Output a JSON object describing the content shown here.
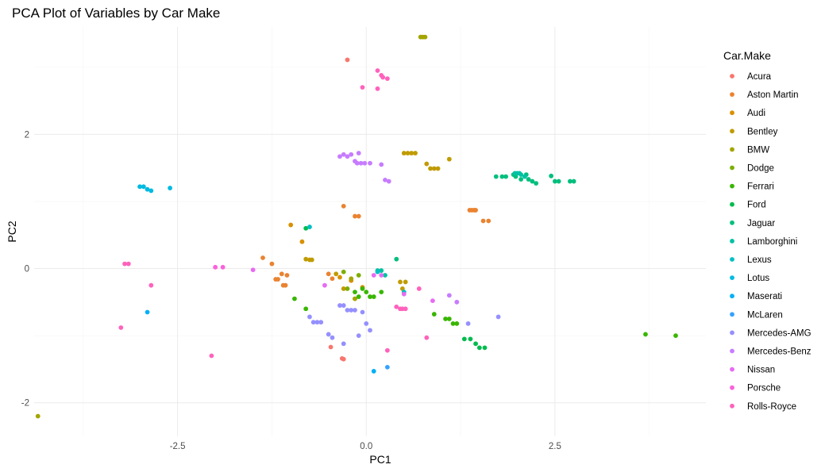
{
  "chart_data": {
    "type": "scatter",
    "title": "PCA Plot of Variables by Car Make",
    "xlabel": "PC1",
    "ylabel": "PC2",
    "xlim": [
      -4.4,
      4.5
    ],
    "ylim": [
      -2.5,
      3.6
    ],
    "x_ticks": [
      -2.5,
      0.0,
      2.5
    ],
    "x_tick_labels": [
      "-2.5",
      "0.0",
      "2.5"
    ],
    "y_ticks": [
      -2,
      0,
      2
    ],
    "y_tick_labels": [
      "-2",
      "0",
      "2"
    ],
    "grid": true,
    "legend": {
      "title": "Car.Make",
      "placement": "right"
    },
    "series": [
      {
        "name": "Acura",
        "color": "#F8766D",
        "points": [
          [
            -0.25,
            3.11
          ],
          [
            -0.47,
            -1.17
          ],
          [
            -0.32,
            -1.34
          ],
          [
            -0.3,
            -1.35
          ]
        ]
      },
      {
        "name": "Aston Martin",
        "color": "#EA8331",
        "points": [
          [
            1.37,
            0.87
          ],
          [
            1.4,
            0.87
          ],
          [
            1.43,
            0.87
          ],
          [
            1.45,
            0.87
          ],
          [
            1.55,
            0.71
          ],
          [
            1.62,
            0.71
          ],
          [
            -0.3,
            0.93
          ],
          [
            -0.15,
            0.78
          ],
          [
            -0.1,
            0.78
          ],
          [
            -1.37,
            0.16
          ],
          [
            -1.25,
            0.07
          ],
          [
            -1.2,
            -0.16
          ],
          [
            -1.17,
            -0.16
          ],
          [
            -1.12,
            -0.08
          ],
          [
            -1.1,
            -0.25
          ],
          [
            -1.07,
            -0.25
          ],
          [
            -1.05,
            -0.1
          ],
          [
            -0.5,
            -0.08
          ],
          [
            -0.45,
            -0.15
          ]
        ]
      },
      {
        "name": "Audi",
        "color": "#D89000",
        "points": [
          [
            -1.0,
            0.65
          ],
          [
            -0.85,
            0.4
          ],
          [
            -0.35,
            -0.13
          ],
          [
            -0.2,
            -0.18
          ],
          [
            -0.15,
            -0.45
          ],
          [
            -0.05,
            -0.28
          ]
        ]
      },
      {
        "name": "Bentley",
        "color": "#C09B00",
        "points": [
          [
            0.5,
            1.72
          ],
          [
            0.55,
            1.72
          ],
          [
            0.6,
            1.72
          ],
          [
            0.65,
            1.72
          ],
          [
            0.8,
            1.56
          ],
          [
            0.85,
            1.49
          ],
          [
            0.9,
            1.49
          ],
          [
            0.95,
            1.49
          ],
          [
            1.1,
            1.63
          ],
          [
            -0.8,
            0.14
          ],
          [
            -0.75,
            0.13
          ],
          [
            -0.72,
            0.13
          ],
          [
            -0.4,
            -0.08
          ],
          [
            -0.3,
            -0.3
          ],
          [
            0.45,
            -0.2
          ],
          [
            0.52,
            -0.2
          ],
          [
            0.48,
            -0.3
          ]
        ]
      },
      {
        "name": "BMW",
        "color": "#A3A500",
        "points": [
          [
            -4.35,
            -2.2
          ],
          [
            0.72,
            3.45
          ],
          [
            0.75,
            3.45
          ],
          [
            0.78,
            3.45
          ],
          [
            -0.2,
            -0.15
          ],
          [
            -0.15,
            -0.45
          ]
        ]
      },
      {
        "name": "Dodge",
        "color": "#7CAE00",
        "points": [
          [
            -0.3,
            -0.05
          ],
          [
            -0.25,
            -0.3
          ],
          [
            -0.1,
            -0.1
          ]
        ]
      },
      {
        "name": "Ferrari",
        "color": "#39B600",
        "points": [
          [
            3.7,
            -0.98
          ],
          [
            4.1,
            -1.0
          ],
          [
            -0.95,
            -0.45
          ],
          [
            -0.8,
            -0.6
          ],
          [
            -0.15,
            -0.35
          ],
          [
            -0.1,
            -0.42
          ],
          [
            -0.05,
            -0.3
          ],
          [
            0.0,
            -0.35
          ],
          [
            0.05,
            -0.42
          ],
          [
            0.1,
            -0.42
          ],
          [
            0.2,
            -0.35
          ],
          [
            0.9,
            -0.68
          ],
          [
            1.05,
            -0.75
          ],
          [
            1.1,
            -0.75
          ],
          [
            1.15,
            -0.82
          ],
          [
            1.2,
            -0.82
          ]
        ]
      },
      {
        "name": "Ford",
        "color": "#00BB4E",
        "points": [
          [
            -0.8,
            0.6
          ],
          [
            1.3,
            -1.05
          ],
          [
            1.38,
            -1.05
          ],
          [
            1.45,
            -1.12
          ],
          [
            1.5,
            -1.18
          ],
          [
            1.57,
            -1.18
          ]
        ]
      },
      {
        "name": "Jaguar",
        "color": "#00BF7D",
        "points": [
          [
            1.72,
            1.37
          ],
          [
            1.8,
            1.37
          ],
          [
            1.85,
            1.37
          ],
          [
            1.95,
            1.4
          ],
          [
            1.98,
            1.37
          ],
          [
            2.05,
            1.33
          ],
          [
            2.12,
            1.4
          ],
          [
            2.15,
            1.33
          ],
          [
            2.2,
            1.3
          ],
          [
            2.25,
            1.27
          ],
          [
            2.45,
            1.38
          ],
          [
            2.5,
            1.3
          ],
          [
            2.55,
            1.3
          ],
          [
            2.7,
            1.3
          ],
          [
            2.75,
            1.3
          ],
          [
            0.4,
            0.14
          ]
        ]
      },
      {
        "name": "Lamborghini",
        "color": "#00C1A3",
        "points": [
          [
            1.97,
            1.42
          ],
          [
            2.0,
            1.42
          ],
          [
            2.03,
            1.42
          ],
          [
            2.05,
            1.4
          ],
          [
            2.1,
            1.37
          ],
          [
            0.15,
            -0.03
          ],
          [
            0.2,
            -0.03
          ],
          [
            0.25,
            -0.1
          ]
        ]
      },
      {
        "name": "Lexus",
        "color": "#00BFC4",
        "points": [
          [
            -0.75,
            0.62
          ],
          [
            0.15,
            -0.05
          ],
          [
            0.5,
            -0.35
          ]
        ]
      },
      {
        "name": "Lotus",
        "color": "#00BAE0",
        "points": [
          [
            -2.6,
            1.2
          ],
          [
            -3.0,
            1.22
          ],
          [
            -2.95,
            1.22
          ],
          [
            -2.9,
            1.18
          ],
          [
            -2.85,
            1.16
          ]
        ]
      },
      {
        "name": "Maserati",
        "color": "#00B0F6",
        "points": [
          [
            -2.9,
            -0.65
          ],
          [
            0.1,
            -1.53
          ]
        ]
      },
      {
        "name": "McLaren",
        "color": "#35A2FF",
        "points": [
          [
            0.28,
            -1.47
          ]
        ]
      },
      {
        "name": "Mercedes-AMG",
        "color": "#9590FF",
        "points": [
          [
            -0.75,
            -0.72
          ],
          [
            -0.7,
            -0.8
          ],
          [
            -0.65,
            -0.8
          ],
          [
            -0.6,
            -0.8
          ],
          [
            -0.5,
            -0.98
          ],
          [
            -0.45,
            -1.03
          ],
          [
            -0.35,
            -0.55
          ],
          [
            -0.3,
            -0.55
          ],
          [
            -0.25,
            -0.62
          ],
          [
            -0.2,
            -0.62
          ],
          [
            -0.15,
            -0.62
          ],
          [
            -0.3,
            -1.12
          ],
          [
            -0.1,
            -1.0
          ],
          [
            -0.05,
            -0.65
          ],
          [
            0.05,
            -0.92
          ],
          [
            0.0,
            -0.82
          ],
          [
            1.35,
            -0.82
          ],
          [
            1.75,
            -0.72
          ]
        ]
      },
      {
        "name": "Mercedes-Benz",
        "color": "#C77CFF",
        "points": [
          [
            -0.3,
            1.7
          ],
          [
            -0.35,
            1.67
          ],
          [
            -0.25,
            1.67
          ],
          [
            -0.2,
            1.7
          ],
          [
            -0.15,
            1.6
          ],
          [
            -0.1,
            1.72
          ],
          [
            -0.12,
            1.57
          ],
          [
            -0.07,
            1.57
          ],
          [
            -0.02,
            1.57
          ],
          [
            0.05,
            1.57
          ],
          [
            0.2,
            1.55
          ],
          [
            0.25,
            1.32
          ],
          [
            0.3,
            1.3
          ],
          [
            1.1,
            -0.4
          ],
          [
            1.2,
            -0.5
          ]
        ]
      },
      {
        "name": "Nissan",
        "color": "#E76BF3",
        "points": [
          [
            -1.5,
            -0.02
          ],
          [
            -0.55,
            -0.25
          ],
          [
            0.1,
            -0.1
          ],
          [
            0.2,
            -0.1
          ],
          [
            0.5,
            -0.38
          ],
          [
            0.88,
            -0.48
          ]
        ]
      },
      {
        "name": "Porsche",
        "color": "#FA62DB",
        "points": [
          [
            -2.0,
            0.02
          ],
          [
            -1.9,
            0.02
          ]
        ]
      },
      {
        "name": "Rolls-Royce",
        "color": "#FF62BC",
        "points": [
          [
            -3.2,
            0.07
          ],
          [
            -3.15,
            0.07
          ],
          [
            -2.85,
            -0.25
          ],
          [
            -3.25,
            -0.88
          ],
          [
            -2.05,
            -1.3
          ],
          [
            0.15,
            2.95
          ],
          [
            0.2,
            2.88
          ],
          [
            0.22,
            2.85
          ],
          [
            0.28,
            2.83
          ],
          [
            -0.05,
            2.7
          ],
          [
            0.15,
            2.68
          ],
          [
            0.4,
            -0.57
          ],
          [
            0.45,
            -0.6
          ],
          [
            0.48,
            -0.6
          ],
          [
            0.52,
            -0.6
          ],
          [
            0.7,
            -0.3
          ],
          [
            0.8,
            -1.03
          ],
          [
            0.28,
            -1.22
          ]
        ]
      }
    ]
  }
}
